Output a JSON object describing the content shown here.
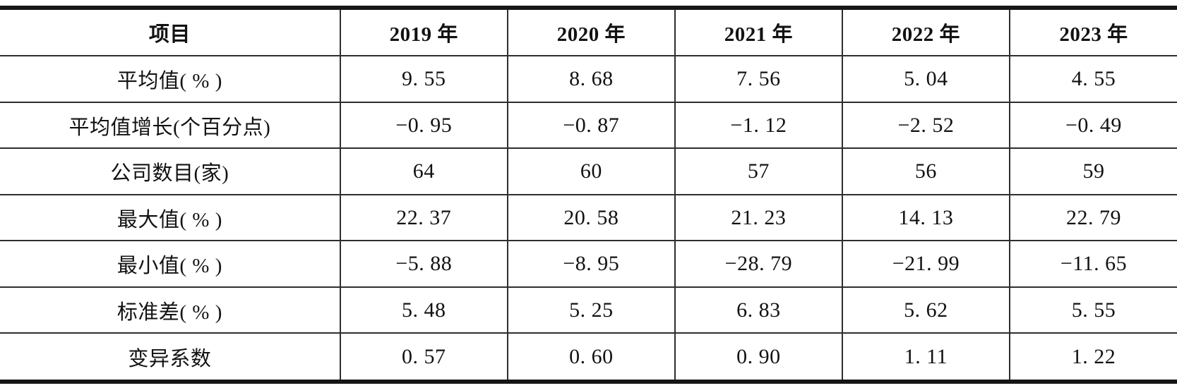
{
  "table": {
    "columns": [
      "项目",
      "2019 年",
      "2020 年",
      "2021 年",
      "2022 年",
      "2023 年"
    ],
    "rows": [
      {
        "label": "平均值( % )",
        "values": [
          "9. 55",
          "8. 68",
          "7. 56",
          "5. 04",
          "4. 55"
        ]
      },
      {
        "label": "平均值增长(个百分点)",
        "values": [
          "−0. 95",
          "−0. 87",
          "−1. 12",
          "−2. 52",
          "−0. 49"
        ]
      },
      {
        "label": "公司数目(家)",
        "values": [
          "64",
          "60",
          "57",
          "56",
          "59"
        ]
      },
      {
        "label": "最大值( % )",
        "values": [
          "22. 37",
          "20. 58",
          "21. 23",
          "14. 13",
          "22. 79"
        ]
      },
      {
        "label": "最小值( % )",
        "values": [
          "−5. 88",
          "−8. 95",
          "−28. 79",
          "−21. 99",
          "−11. 65"
        ]
      },
      {
        "label": "标准差( % )",
        "values": [
          "5. 48",
          "5. 25",
          "6. 83",
          "5. 62",
          "5. 55"
        ]
      },
      {
        "label": "变异系数",
        "values": [
          "0. 57",
          "0. 60",
          "0. 90",
          "1. 11",
          "1. 22"
        ]
      }
    ]
  }
}
